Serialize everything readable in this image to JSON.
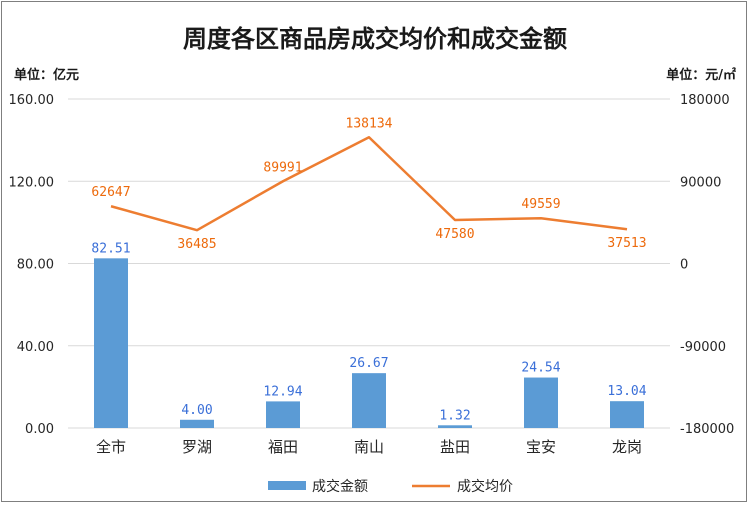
{
  "chart_data": {
    "type": "bar",
    "title": "周度各区商品房成交均价和成交金额",
    "left_unit": "单位：亿元",
    "right_unit": "单位：元/㎡",
    "categories": [
      "全市",
      "罗湖",
      "福田",
      "南山",
      "盐田",
      "宝安",
      "龙岗"
    ],
    "series": [
      {
        "name": "成交金额",
        "type": "bar",
        "axis": "left",
        "color": "#5b9bd5",
        "values": [
          82.51,
          4.0,
          12.94,
          26.67,
          1.32,
          24.54,
          13.04
        ],
        "labels": [
          "82.51",
          "4.00",
          "12.94",
          "26.67",
          "1.32",
          "24.54",
          "13.04"
        ]
      },
      {
        "name": "成交均价",
        "type": "line",
        "axis": "right",
        "color": "#ed7d31",
        "values": [
          62647,
          36485,
          89991,
          138134,
          47580,
          49559,
          37513
        ],
        "labels": [
          "62647",
          "36485",
          "89991",
          "138134",
          "47580",
          "49559",
          "37513"
        ]
      }
    ],
    "left_axis": {
      "range": [
        0,
        160
      ],
      "ticks": [
        "160.00",
        "120.00",
        "80.00",
        "40.00",
        "0.00"
      ]
    },
    "right_axis": {
      "range": [
        -180000,
        180000
      ],
      "ticks": [
        "180000",
        "90000",
        "0",
        "-90000",
        "-180000"
      ]
    },
    "grid": true,
    "legend_position": "bottom"
  }
}
